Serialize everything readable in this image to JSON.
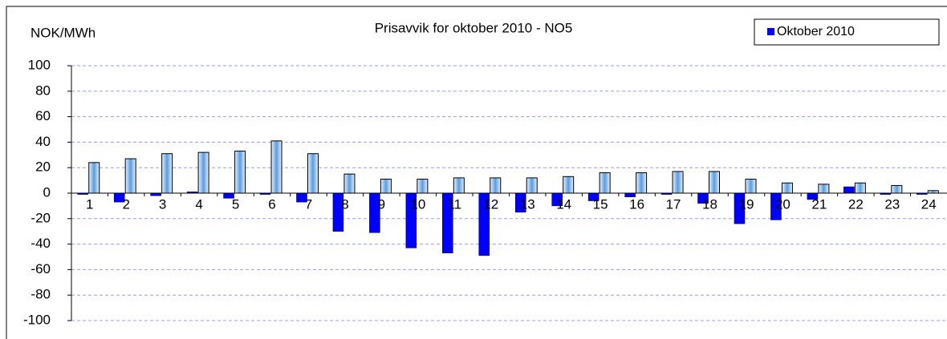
{
  "chart_data": {
    "type": "bar",
    "title": "Prisavvik for oktober 2010 - NO5",
    "y_label": "NOK/MWh",
    "categories": [
      "1",
      "2",
      "3",
      "4",
      "5",
      "6",
      "7",
      "8",
      "9",
      "10",
      "11",
      "12",
      "13",
      "14",
      "15",
      "16",
      "17",
      "18",
      "19",
      "20",
      "21",
      "22",
      "23",
      "24"
    ],
    "series": [
      {
        "name": "Oktober 2010",
        "color": "#0000ff",
        "values": [
          -1,
          -7,
          -2,
          1,
          -4,
          -1,
          -7,
          -30,
          -31,
          -43,
          -47,
          -49,
          -15,
          -10,
          -6,
          -3,
          -1,
          -8,
          -24,
          -21,
          -5,
          5,
          -1,
          -1
        ]
      },
      {
        "color": "#a9cdf2",
        "values": [
          24,
          27,
          31,
          32,
          33,
          41,
          31,
          15,
          11,
          11,
          12,
          12,
          12,
          13,
          16,
          16,
          17,
          17,
          11,
          8,
          7,
          8,
          6,
          2
        ]
      }
    ],
    "ylim": [
      -100,
      100
    ],
    "yticks": [
      -100,
      -80,
      -60,
      -40,
      -20,
      0,
      20,
      40,
      60,
      80,
      100
    ],
    "grid": true,
    "legend": "top-right"
  }
}
